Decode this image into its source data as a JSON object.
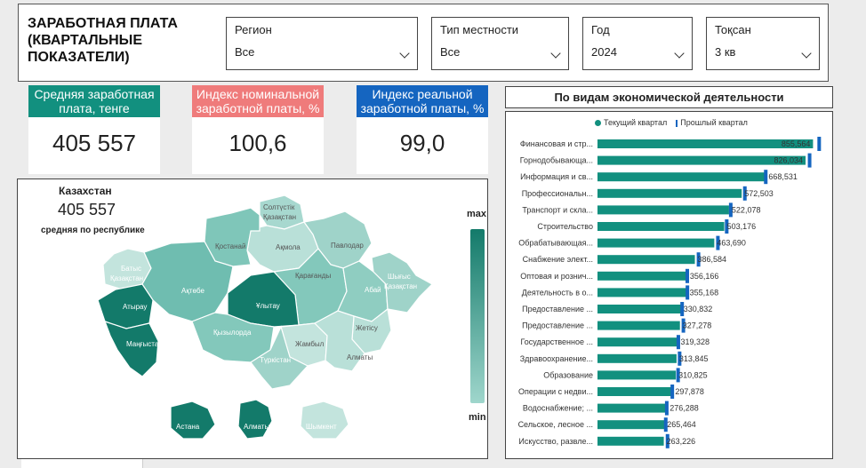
{
  "header": {
    "title_lines": [
      "ЗАРАБОТНАЯ ПЛАТА",
      "(КВАРТАЛЬНЫЕ",
      "ПОКАЗАТЕЛИ)"
    ]
  },
  "filters": [
    {
      "label": "Регион",
      "value": "Все"
    },
    {
      "label": "Тип местности",
      "value": "Все"
    },
    {
      "label": "Год",
      "value": "2024"
    },
    {
      "label": "Тоқсан",
      "value": "3 кв"
    }
  ],
  "kpis": [
    {
      "caption": "Средняя заработная плата, тенге",
      "value": "405 557",
      "color": "#12907f"
    },
    {
      "caption": "Индекс номинальной заработной платы, %",
      "value": "100,6",
      "color": "#ef7b7b"
    },
    {
      "caption": "Индекс реальной заработной платы, %",
      "value": "99,0",
      "color": "#1565c0"
    }
  ],
  "map": {
    "country": "Казахстан",
    "value": "405 557",
    "subtitle": "средняя по республике",
    "legend_max": "max",
    "legend_min": "min",
    "regions": [
      "Солтүстік Қазақстан",
      "Ақмола",
      "Павлодар",
      "Қостанай",
      "Батыс Қазақстан",
      "Ақтөбе",
      "Қарағанды",
      "Абай",
      "Шығыс Қазақстан",
      "Атырау",
      "Ұлытау",
      "Маңғыстау",
      "Қызылорда",
      "Жетісу",
      "Жамбыл",
      "Алматы",
      "Түркістан",
      "Астана",
      "Алматы",
      "Шымкент"
    ]
  },
  "chart_title": "По видам экономической деятельности",
  "chart_data": {
    "type": "bar",
    "orientation": "horizontal",
    "legend": [
      "Текущий квартал",
      "Прошлый квартал"
    ],
    "colors": {
      "current": "#12907f",
      "previous": "#1565c0"
    },
    "categories": [
      "Финансовая и стр...",
      "Горнодобывающа...",
      "Информация и св...",
      "Профессиональн...",
      "Транспорт и скла...",
      "Строительство",
      "Обрабатывающая...",
      "Снабжение элект...",
      "Оптовая и рознич...",
      "Деятельность в о...",
      "Предоставление ...",
      "Предоставление ...",
      "Государственное ...",
      "Здравоохранение...",
      "Образование",
      "Операции с недви...",
      "Водоснабжение; ...",
      "Сельское, лесное ...",
      "Искусство, развле..."
    ],
    "series": [
      {
        "name": "Текущий квартал",
        "values": [
          855564,
          826034,
          668531,
          572503,
          522078,
          503176,
          463690,
          386584,
          356166,
          355168,
          330832,
          327278,
          319328,
          313845,
          310825,
          297878,
          276288,
          265464,
          263226
        ]
      },
      {
        "name": "Прошлый квартал",
        "values": [
          880000,
          842000,
          668000,
          585000,
          529000,
          513000,
          478000,
          401000,
          356500,
          357000,
          336000,
          341000,
          321000,
          326000,
          320000,
          297000,
          275000,
          271000,
          278000
        ]
      }
    ],
    "data_labels": [
      "855,564",
      "826,034",
      "668,531",
      "572,503",
      "522,078",
      "503,176",
      "463,690",
      "386,584",
      "356,166",
      "355,168",
      "330,832",
      "327,278",
      "319,328",
      "313,845",
      "310,825",
      "297,878",
      "276,288",
      "265,464",
      "263,226"
    ]
  }
}
